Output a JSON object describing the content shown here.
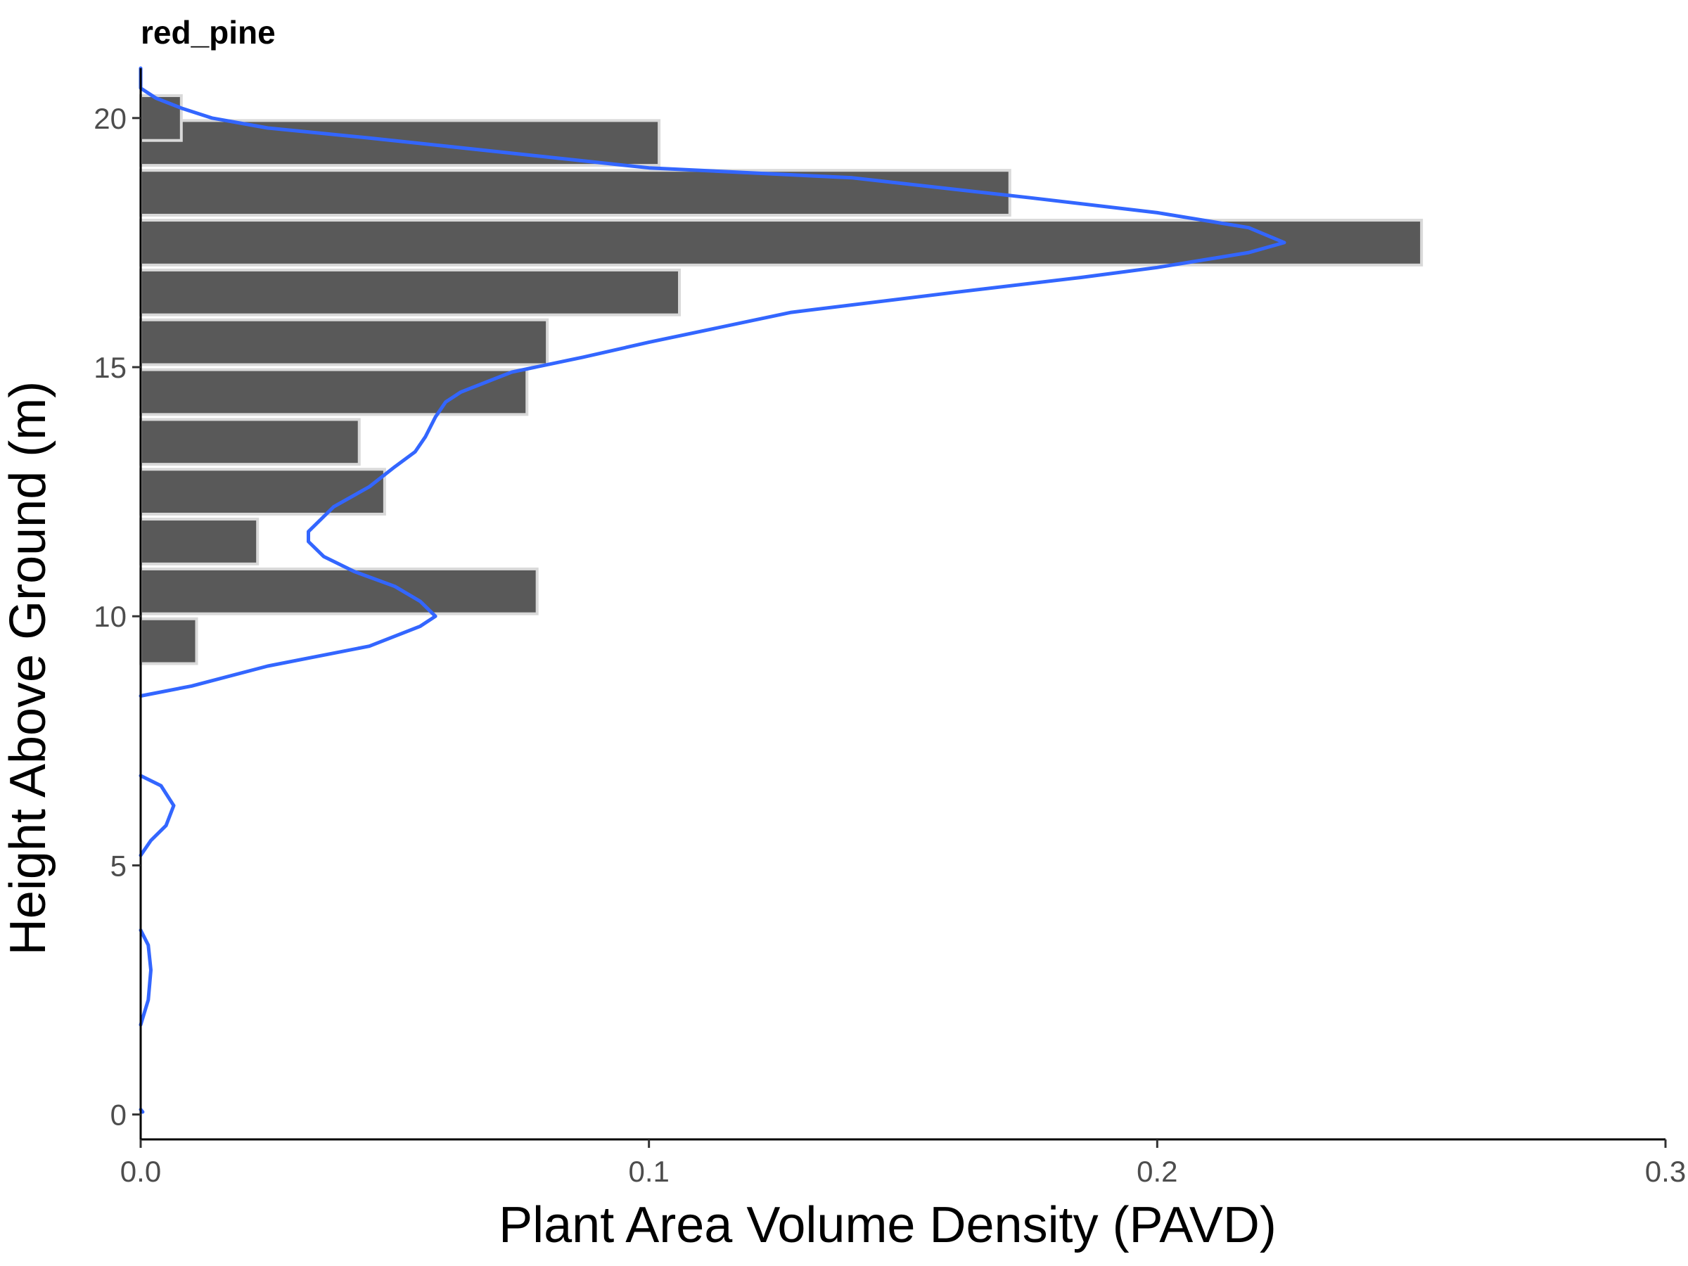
{
  "chart_data": {
    "type": "bar",
    "orientation": "horizontal",
    "title": "red_pine",
    "xlabel": "Plant Area Volume Density (PAVD)",
    "ylabel": "Height Above Ground (m)",
    "xlim": [
      0,
      0.3
    ],
    "ylim": [
      -0.5,
      21
    ],
    "x_ticks": [
      0,
      0.1,
      0.2,
      0.3
    ],
    "x_tick_labels": [
      "0.0",
      "0.1",
      "0.2",
      "0.3"
    ],
    "y_ticks": [
      0,
      5,
      10,
      15,
      20
    ],
    "y_tick_labels": [
      "0",
      "5",
      "10",
      "15",
      "20"
    ],
    "bar_width": 0.9,
    "bars": {
      "heights": [
        9.5,
        10.5,
        11.5,
        12.5,
        13.5,
        14.5,
        15.5,
        16.5,
        17.5,
        18.5,
        19.5,
        20.0
      ],
      "values": [
        0.011,
        0.078,
        0.023,
        0.048,
        0.043,
        0.076,
        0.08,
        0.106,
        0.252,
        0.171,
        0.102,
        0.008
      ],
      "fill": "#595959",
      "stroke": "#d9d9d9"
    },
    "density_line": {
      "color": "#3366ff",
      "segments": [
        {
          "points": [
            [
              0.0,
              21.0
            ],
            [
              0.0,
              20.6
            ],
            [
              0.003,
              20.4
            ],
            [
              0.008,
              20.2
            ],
            [
              0.014,
              20.0
            ],
            [
              0.025,
              19.8
            ],
            [
              0.045,
              19.6
            ],
            [
              0.1,
              19.0
            ],
            [
              0.14,
              18.8
            ],
            [
              0.175,
              18.4
            ],
            [
              0.2,
              18.1
            ],
            [
              0.218,
              17.8
            ],
            [
              0.225,
              17.5
            ],
            [
              0.218,
              17.3
            ],
            [
              0.2,
              17.0
            ],
            [
              0.185,
              16.8
            ],
            [
              0.16,
              16.5
            ],
            [
              0.128,
              16.1
            ],
            [
              0.1,
              15.5
            ],
            [
              0.087,
              15.2
            ],
            [
              0.073,
              14.9
            ],
            [
              0.063,
              14.5
            ],
            [
              0.06,
              14.3
            ],
            [
              0.058,
              14.0
            ],
            [
              0.056,
              13.6
            ],
            [
              0.054,
              13.3
            ],
            [
              0.05,
              13.0
            ],
            [
              0.045,
              12.6
            ],
            [
              0.038,
              12.2
            ],
            [
              0.033,
              11.7
            ],
            [
              0.033,
              11.5
            ],
            [
              0.036,
              11.2
            ],
            [
              0.042,
              10.9
            ],
            [
              0.05,
              10.6
            ],
            [
              0.055,
              10.3
            ],
            [
              0.058,
              10.0
            ],
            [
              0.055,
              9.8
            ],
            [
              0.045,
              9.4
            ],
            [
              0.025,
              9.0
            ],
            [
              0.01,
              8.6
            ],
            [
              0.0,
              8.4
            ]
          ]
        },
        {
          "points": [
            [
              0.0,
              6.8
            ],
            [
              0.004,
              6.6
            ],
            [
              0.0065,
              6.2
            ],
            [
              0.005,
              5.8
            ],
            [
              0.002,
              5.5
            ],
            [
              0.0,
              5.2
            ]
          ]
        },
        {
          "points": [
            [
              0.0,
              3.7
            ],
            [
              0.0015,
              3.4
            ],
            [
              0.002,
              2.9
            ],
            [
              0.0015,
              2.3
            ],
            [
              0.0,
              1.8
            ]
          ]
        },
        {
          "points": [
            [
              0.0,
              0.1
            ],
            [
              0.0004,
              0.05
            ]
          ]
        }
      ]
    },
    "grid": false,
    "legend": "none"
  }
}
